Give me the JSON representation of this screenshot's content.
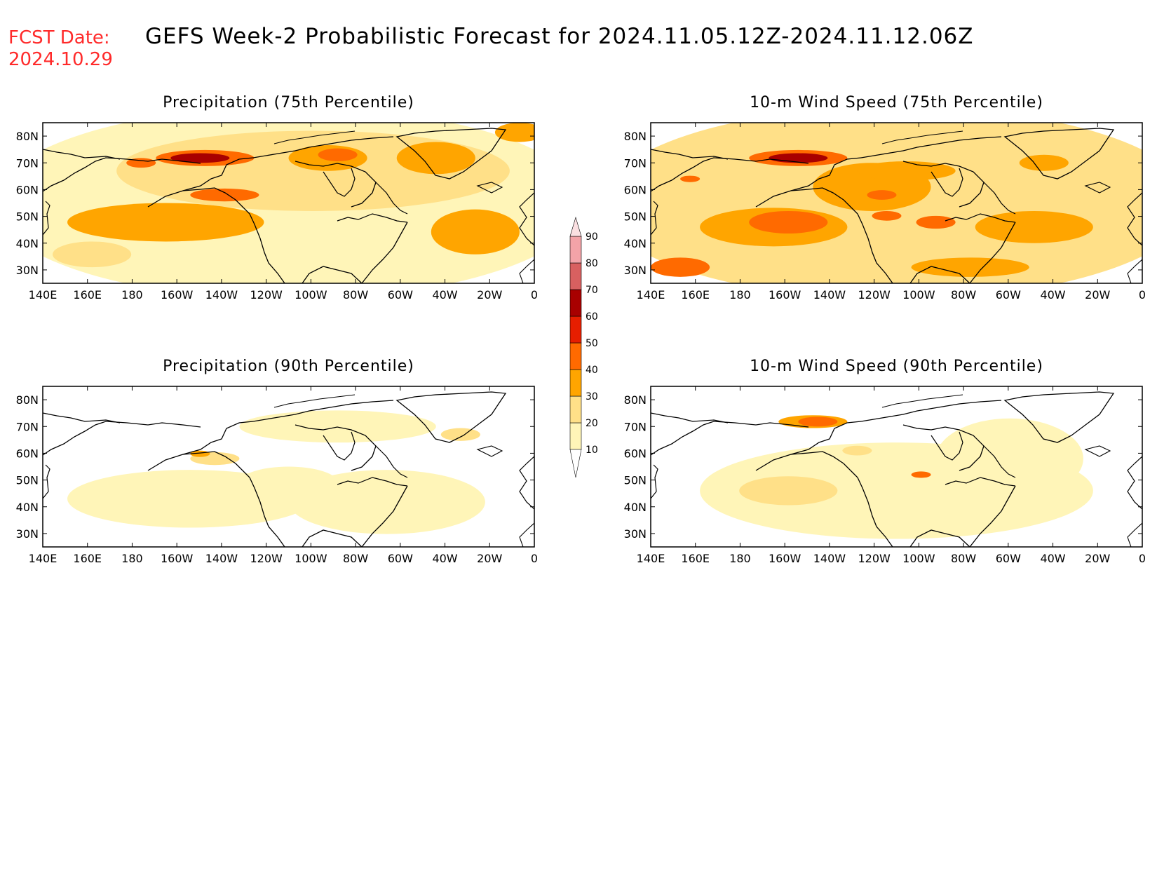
{
  "header": {
    "fcst_label": "FCST Date:",
    "fcst_date": "2024.10.29",
    "title": "GEFS Week-2 Probabilistic Forecast for 2024.11.05.12Z-2024.11.12.06Z"
  },
  "colors": {
    "header_accent": "#ff2a2a",
    "coast": "#000000",
    "frame": "#000000"
  },
  "axes": {
    "lon_ticks": [
      "140E",
      "160E",
      "180",
      "160W",
      "140W",
      "120W",
      "100W",
      "80W",
      "60W",
      "40W",
      "20W",
      "0"
    ],
    "lat_ticks": [
      "80N",
      "70N",
      "60N",
      "50N",
      "40N",
      "30N"
    ],
    "lon_range": [
      140,
      360
    ],
    "lat_range": [
      25,
      85
    ]
  },
  "colorbar": {
    "levels": [
      "10",
      "20",
      "30",
      "40",
      "50",
      "60",
      "70",
      "80",
      "90"
    ],
    "colors": [
      "#fff5b8",
      "#ffe088",
      "#ffa500",
      "#ff6a00",
      "#e61e00",
      "#a80000",
      "#d86060",
      "#f3a3a8",
      "#fbe0e2"
    ]
  },
  "panels": [
    {
      "id": "precip75",
      "title": "Precipitation (75th Percentile)"
    },
    {
      "id": "wind75",
      "title": "10-m Wind Speed (75th Percentile)"
    },
    {
      "id": "precip90",
      "title": "Precipitation (90th Percentile)"
    },
    {
      "id": "wind90",
      "title": "10-m Wind Speed (90th Percentile)"
    }
  ]
}
